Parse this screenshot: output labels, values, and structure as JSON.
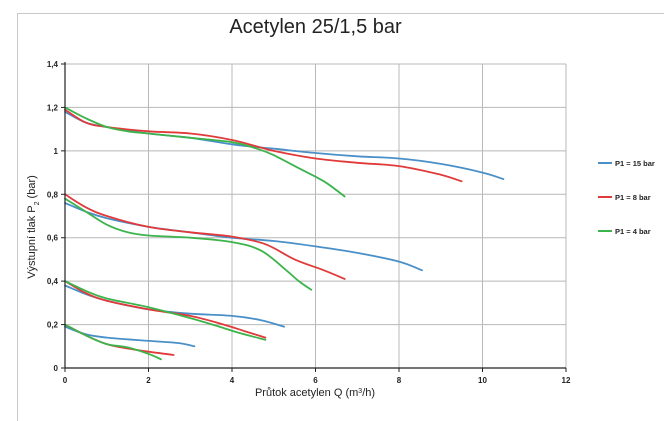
{
  "chart_data": {
    "type": "line",
    "title": "Acetylen 25/1,5 bar",
    "xlabel_text": "Průtok acetylen Q (m",
    "xlabel_sup": "3",
    "xlabel_tail": "/h)",
    "ylabel_text": "Výstupní tlak P",
    "ylabel_sub": "2",
    "ylabel_tail": " (bar)",
    "xlim": [
      0,
      12
    ],
    "ylim": [
      0,
      1.4
    ],
    "xticks": [
      0,
      2,
      4,
      6,
      8,
      10,
      12
    ],
    "xtick_labels": [
      "0",
      "2",
      "4",
      "6",
      "8",
      "10",
      "12"
    ],
    "yticks": [
      0,
      0.2,
      0.4,
      0.6,
      0.8,
      1.0,
      1.2,
      1.4
    ],
    "ytick_labels": [
      "0",
      "0,2",
      "0,4",
      "0,6",
      "0,8",
      "1",
      "1,2",
      "1,4"
    ],
    "grid": true,
    "legend_position": "right",
    "series": [
      {
        "name": "P1 = 15 bar",
        "color": "#4a90c8",
        "curves": [
          [
            [
              0,
              1.18
            ],
            [
              0.5,
              1.13
            ],
            [
              1,
              1.11
            ],
            [
              2,
              1.08
            ],
            [
              3,
              1.06
            ],
            [
              4,
              1.03
            ],
            [
              5,
              1.01
            ],
            [
              6,
              0.99
            ],
            [
              7,
              0.975
            ],
            [
              8,
              0.965
            ],
            [
              9,
              0.94
            ],
            [
              10,
              0.9
            ],
            [
              10.5,
              0.87
            ]
          ],
          [
            [
              0,
              0.76
            ],
            [
              0.5,
              0.72
            ],
            [
              1,
              0.69
            ],
            [
              2,
              0.65
            ],
            [
              3,
              0.625
            ],
            [
              4,
              0.6
            ],
            [
              5,
              0.585
            ],
            [
              6,
              0.56
            ],
            [
              7,
              0.53
            ],
            [
              8,
              0.49
            ],
            [
              8.55,
              0.45
            ]
          ],
          [
            [
              0,
              0.38
            ],
            [
              0.5,
              0.34
            ],
            [
              1,
              0.31
            ],
            [
              2,
              0.27
            ],
            [
              3,
              0.25
            ],
            [
              4,
              0.24
            ],
            [
              4.7,
              0.22
            ],
            [
              5.25,
              0.19
            ]
          ],
          [
            [
              0,
              0.19
            ],
            [
              0.5,
              0.155
            ],
            [
              1,
              0.14
            ],
            [
              2,
              0.125
            ],
            [
              2.7,
              0.115
            ],
            [
              3.1,
              0.1
            ]
          ]
        ]
      },
      {
        "name": "P1 = 8 bar",
        "color": "#e03a3a",
        "curves": [
          [
            [
              0,
              1.19
            ],
            [
              0.5,
              1.13
            ],
            [
              1,
              1.11
            ],
            [
              2,
              1.09
            ],
            [
              3,
              1.08
            ],
            [
              4,
              1.05
            ],
            [
              5,
              1.0
            ],
            [
              6,
              0.965
            ],
            [
              7,
              0.945
            ],
            [
              8,
              0.93
            ],
            [
              9,
              0.89
            ],
            [
              9.5,
              0.86
            ]
          ],
          [
            [
              0,
              0.8
            ],
            [
              0.5,
              0.74
            ],
            [
              1,
              0.7
            ],
            [
              2,
              0.65
            ],
            [
              3,
              0.625
            ],
            [
              4,
              0.605
            ],
            [
              4.8,
              0.57
            ],
            [
              5.5,
              0.5
            ],
            [
              6.2,
              0.45
            ],
            [
              6.7,
              0.41
            ]
          ],
          [
            [
              0,
              0.4
            ],
            [
              0.5,
              0.345
            ],
            [
              1,
              0.31
            ],
            [
              2,
              0.27
            ],
            [
              3,
              0.24
            ],
            [
              3.8,
              0.2
            ],
            [
              4.3,
              0.17
            ],
            [
              4.8,
              0.14
            ]
          ],
          [
            [
              0,
              0.2
            ],
            [
              0.5,
              0.15
            ],
            [
              1,
              0.11
            ],
            [
              1.5,
              0.09
            ],
            [
              2,
              0.075
            ],
            [
              2.6,
              0.06
            ]
          ]
        ]
      },
      {
        "name": "P1 = 4 bar",
        "color": "#3cb44b",
        "curves": [
          [
            [
              0,
              1.2
            ],
            [
              0.5,
              1.15
            ],
            [
              1,
              1.11
            ],
            [
              1.5,
              1.09
            ],
            [
              2,
              1.08
            ],
            [
              3,
              1.06
            ],
            [
              4,
              1.04
            ],
            [
              4.6,
              1.01
            ],
            [
              5,
              0.98
            ],
            [
              5.6,
              0.92
            ],
            [
              6.2,
              0.86
            ],
            [
              6.7,
              0.79
            ]
          ],
          [
            [
              0,
              0.78
            ],
            [
              0.5,
              0.72
            ],
            [
              1,
              0.66
            ],
            [
              1.5,
              0.625
            ],
            [
              2,
              0.61
            ],
            [
              3,
              0.6
            ],
            [
              4,
              0.58
            ],
            [
              4.7,
              0.54
            ],
            [
              5.3,
              0.45
            ],
            [
              5.6,
              0.4
            ],
            [
              5.9,
              0.36
            ]
          ],
          [
            [
              0,
              0.4
            ],
            [
              0.5,
              0.355
            ],
            [
              1,
              0.32
            ],
            [
              2,
              0.28
            ],
            [
              3,
              0.23
            ],
            [
              3.7,
              0.19
            ],
            [
              4.2,
              0.16
            ],
            [
              4.8,
              0.13
            ]
          ],
          [
            [
              0,
              0.2
            ],
            [
              0.5,
              0.15
            ],
            [
              1,
              0.11
            ],
            [
              1.5,
              0.095
            ],
            [
              2,
              0.065
            ],
            [
              2.3,
              0.04
            ]
          ]
        ]
      }
    ]
  }
}
